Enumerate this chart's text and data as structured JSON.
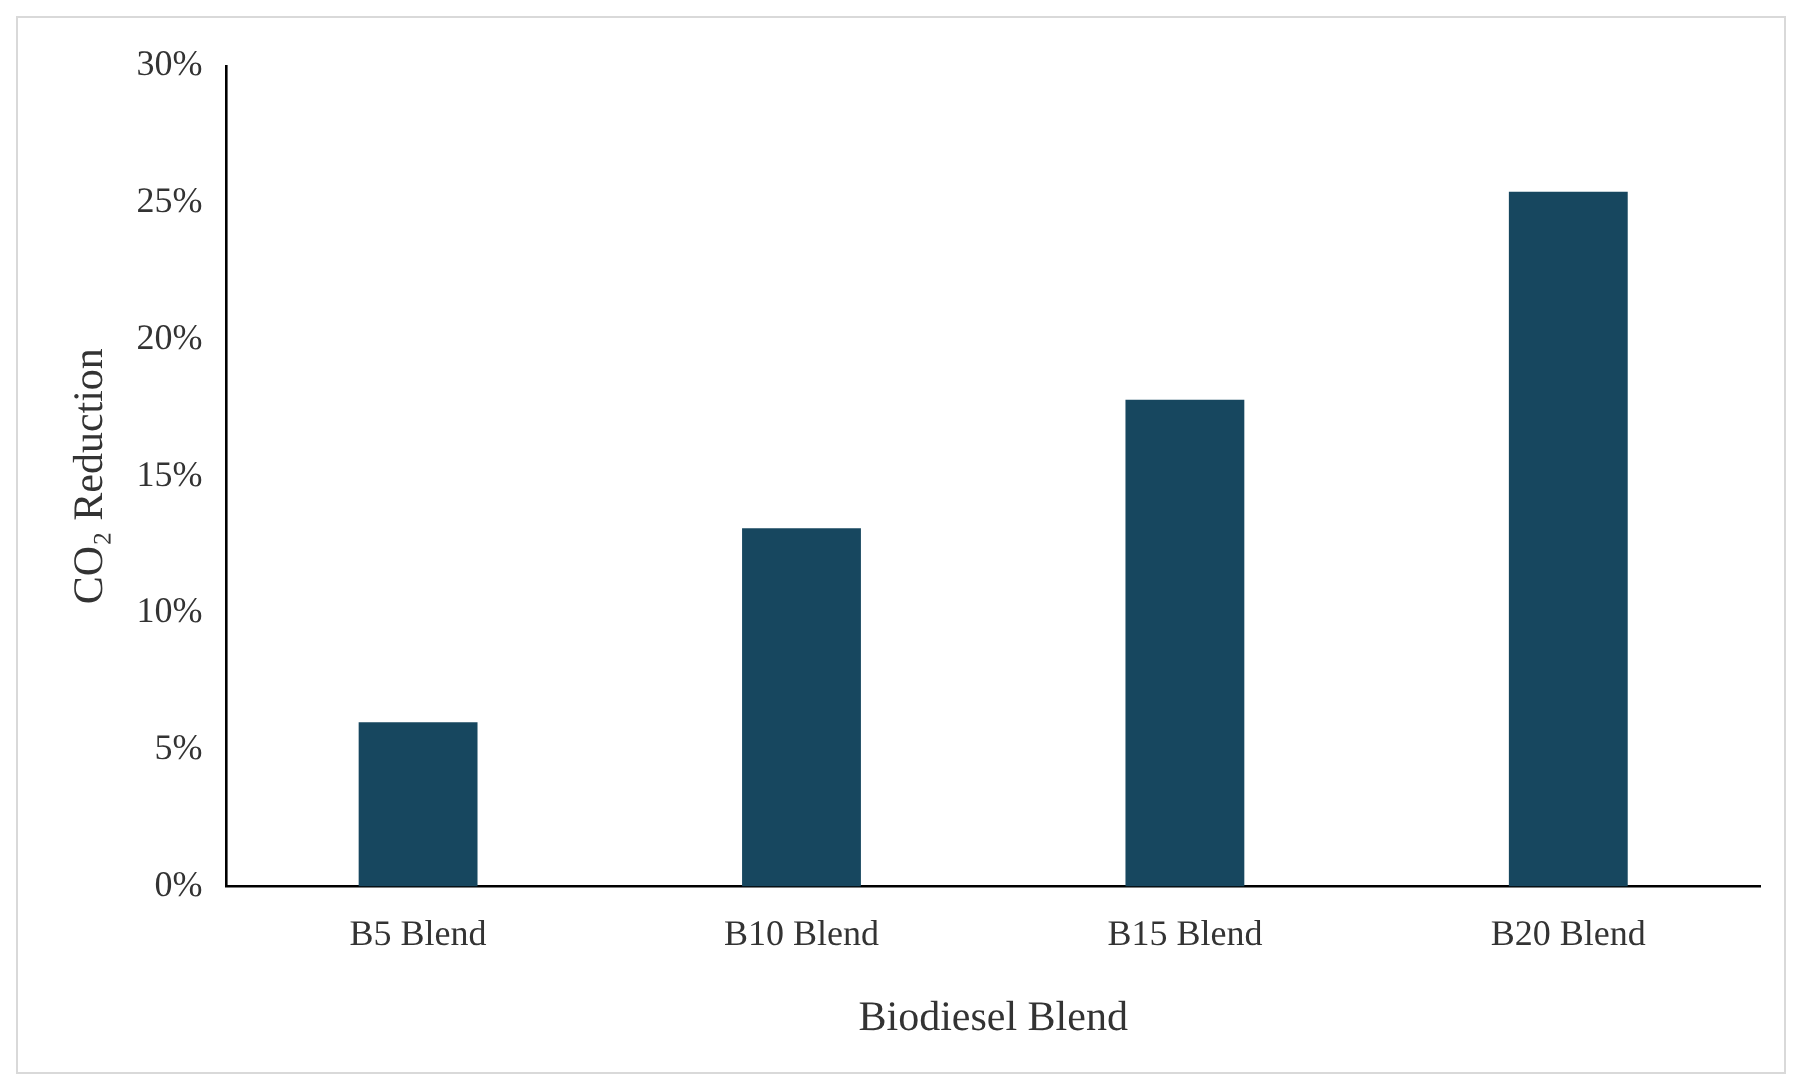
{
  "chart_data": {
    "type": "bar",
    "xlabel": "Biodiesel Blend",
    "ylabel": "CO₂ Reduction",
    "categories": [
      "B5 Blend",
      "B10 Blend",
      "B15 Blend",
      "B20 Blend"
    ],
    "values": [
      6,
      13.1,
      17.8,
      25.4
    ],
    "color": "#17475f",
    "ylim": [
      0,
      30
    ],
    "yticks": [
      {
        "value": 0,
        "label": "0%"
      },
      {
        "value": 5,
        "label": "5%"
      },
      {
        "value": 10,
        "label": "10%"
      },
      {
        "value": 15,
        "label": "15%"
      },
      {
        "value": 20,
        "label": "20%"
      },
      {
        "value": 25,
        "label": "25%"
      },
      {
        "value": 30,
        "label": "30%"
      }
    ],
    "grid": false,
    "legend": false
  }
}
